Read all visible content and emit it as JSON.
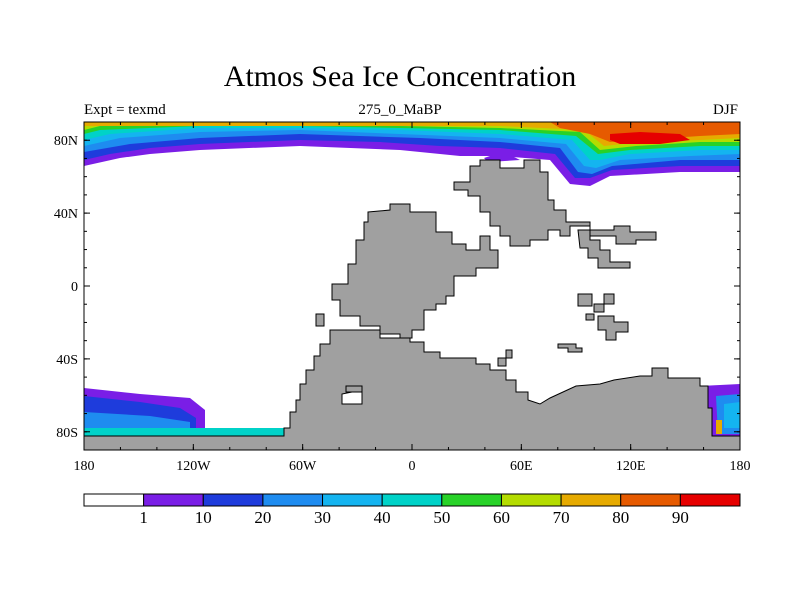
{
  "title": "Atmos Sea Ice Concentration",
  "left_string": "Expt = texmd",
  "center_string": "275_0_MaBP",
  "right_string": "DJF",
  "colors": {
    "land": "#a0a0a0",
    "ocean": "#ffffff",
    "levels": [
      "#ffffff",
      "#7a1ee6",
      "#1e3cdc",
      "#1e8cf0",
      "#14b4f0",
      "#00d2c8",
      "#28d228",
      "#b4dc00",
      "#e6aa00",
      "#e65a00",
      "#e60000"
    ]
  },
  "lat_ticks": [
    {
      "value": 80,
      "label": "80N"
    },
    {
      "value": 40,
      "label": "40N"
    },
    {
      "value": 0,
      "label": "0"
    },
    {
      "value": -40,
      "label": "40S"
    },
    {
      "value": -80,
      "label": "80S"
    }
  ],
  "lon_ticks": [
    {
      "value": -180,
      "label": "180"
    },
    {
      "value": -120,
      "label": "120W"
    },
    {
      "value": -60,
      "label": "60W"
    },
    {
      "value": 0,
      "label": "0"
    },
    {
      "value": 60,
      "label": "60E"
    },
    {
      "value": 120,
      "label": "120E"
    },
    {
      "value": 180,
      "label": "180"
    }
  ],
  "colorbar": {
    "labels": [
      "1",
      "10",
      "20",
      "30",
      "40",
      "50",
      "60",
      "70",
      "80",
      "90"
    ]
  }
}
